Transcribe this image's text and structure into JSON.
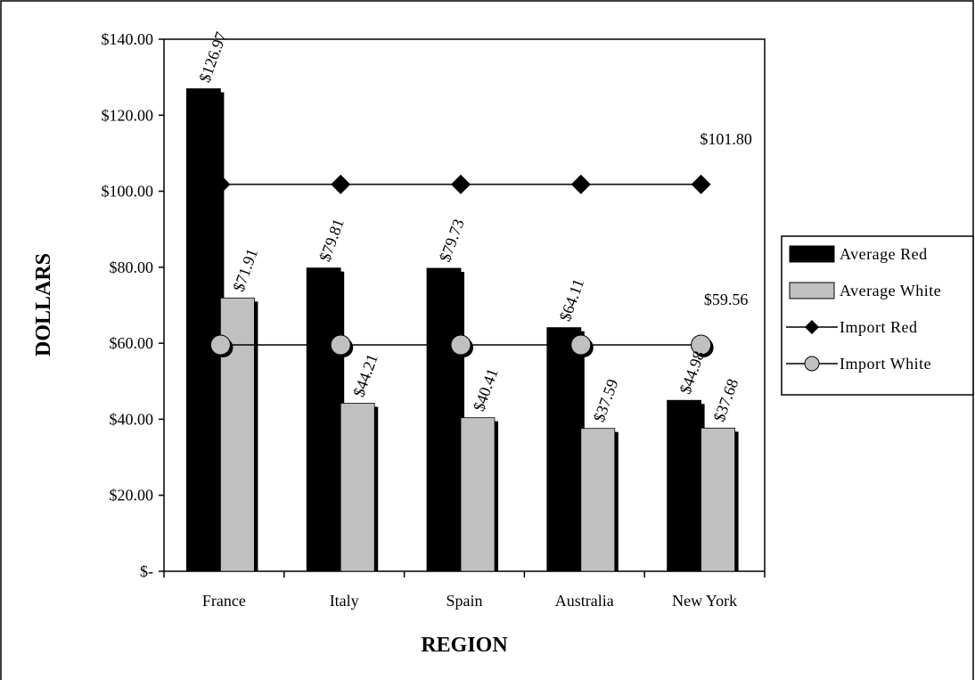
{
  "chart_data": {
    "type": "bar",
    "title": "",
    "xlabel": "REGION",
    "ylabel": "DOLLARS",
    "categories": [
      "France",
      "Italy",
      "Spain",
      "Australia",
      "New York"
    ],
    "ylim": [
      0,
      140
    ],
    "yticks": [
      0,
      20,
      40,
      60,
      80,
      100,
      120,
      140
    ],
    "ytick_labels": [
      "$-",
      "$20.00",
      "$40.00",
      "$60.00",
      "$80.00",
      "$100.00",
      "$120.00",
      "$140.00"
    ],
    "grid": false,
    "legend_position": "right",
    "series": [
      {
        "name": "Average Red",
        "kind": "bar",
        "color": "#000000",
        "values": [
          126.97,
          79.81,
          79.73,
          64.11,
          44.98
        ],
        "labels": [
          "$126.97",
          "$79.81",
          "$79.73",
          "$64.11",
          "$44.98"
        ]
      },
      {
        "name": "Average White",
        "kind": "bar",
        "color": "#c0c0c0",
        "values": [
          71.91,
          44.21,
          40.41,
          37.59,
          37.68
        ],
        "labels": [
          "$71.91",
          "$44.21",
          "$40.41",
          "$37.59",
          "$37.68"
        ]
      },
      {
        "name": "Import Red",
        "kind": "line",
        "marker": "diamond",
        "color": "#000000",
        "values": [
          101.8,
          101.8,
          101.8,
          101.8,
          101.8
        ],
        "end_label": "$101.80"
      },
      {
        "name": "Import White",
        "kind": "line",
        "marker": "circle",
        "color": "#c0c0c0",
        "values": [
          59.56,
          59.56,
          59.56,
          59.56,
          59.56
        ],
        "end_label": "$59.56"
      }
    ]
  }
}
